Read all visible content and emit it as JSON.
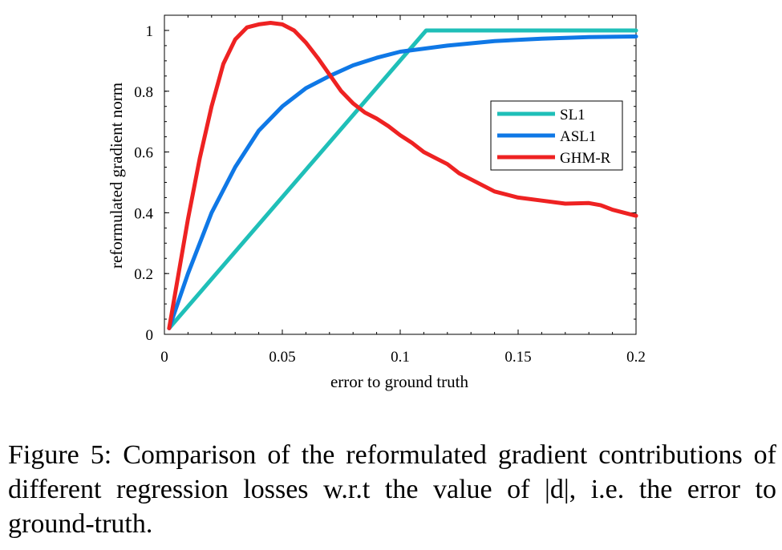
{
  "chart_data": {
    "type": "line",
    "title": "",
    "xlabel": "error to ground truth",
    "ylabel": "reformulated gradient norm",
    "xlim": [
      0,
      0.2
    ],
    "ylim": [
      0,
      1.05
    ],
    "xticks": [
      0,
      0.05,
      0.1,
      0.15,
      0.2
    ],
    "xtick_labels": [
      "0",
      "0.05",
      "0.1",
      "0.15",
      "0.2"
    ],
    "yticks": [
      0,
      0.2,
      0.4,
      0.6,
      0.8,
      1
    ],
    "ytick_labels": [
      "0",
      "0.2",
      "0.4",
      "0.6",
      "0.8",
      "1"
    ],
    "grid": false,
    "legend_position": "right",
    "series": [
      {
        "name": "SL1",
        "color": "#1fbfb8",
        "x": [
          0.002,
          0.111,
          0.2
        ],
        "y": [
          0.02,
          1.0,
          1.0
        ]
      },
      {
        "name": "ASL1",
        "color": "#0f78e6",
        "x": [
          0.002,
          0.01,
          0.02,
          0.03,
          0.04,
          0.05,
          0.06,
          0.07,
          0.08,
          0.09,
          0.1,
          0.12,
          0.14,
          0.16,
          0.18,
          0.2
        ],
        "y": [
          0.02,
          0.2,
          0.4,
          0.55,
          0.67,
          0.75,
          0.81,
          0.85,
          0.885,
          0.91,
          0.93,
          0.95,
          0.965,
          0.973,
          0.978,
          0.98
        ]
      },
      {
        "name": "GHM-R",
        "color": "#ee2222",
        "x": [
          0.002,
          0.01,
          0.015,
          0.02,
          0.025,
          0.03,
          0.035,
          0.04,
          0.045,
          0.05,
          0.055,
          0.06,
          0.065,
          0.07,
          0.075,
          0.08,
          0.085,
          0.09,
          0.095,
          0.1,
          0.105,
          0.11,
          0.115,
          0.12,
          0.125,
          0.13,
          0.14,
          0.15,
          0.16,
          0.17,
          0.18,
          0.185,
          0.19,
          0.2
        ],
        "y": [
          0.02,
          0.38,
          0.58,
          0.75,
          0.89,
          0.97,
          1.01,
          1.02,
          1.025,
          1.02,
          1.0,
          0.96,
          0.91,
          0.855,
          0.8,
          0.76,
          0.73,
          0.71,
          0.685,
          0.655,
          0.63,
          0.6,
          0.58,
          0.56,
          0.53,
          0.51,
          0.47,
          0.45,
          0.44,
          0.43,
          0.432,
          0.425,
          0.41,
          0.39
        ]
      }
    ]
  },
  "caption": "Figure 5: Comparison of the reformulated gradient contributions of different regression losses w.r.t the value of |d|, i.e. the error to ground-truth."
}
